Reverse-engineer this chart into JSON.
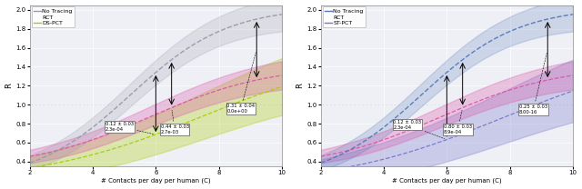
{
  "x_min": 2,
  "x_max": 10,
  "y_min": 0.35,
  "y_max": 2.05,
  "yticks": [
    0.4,
    0.6,
    0.8,
    1.0,
    1.2,
    1.4,
    1.6,
    1.8,
    2.0
  ],
  "xticks": [
    2,
    4,
    6,
    8,
    10
  ],
  "xlabel": "# Contacts per day per human (C)",
  "ylabel": "R",
  "bg_color": "#eef0f5",
  "left": {
    "legend": [
      "No Tracing",
      "RCT",
      "DS-PCT"
    ],
    "no_tracing_color": "#9999aa",
    "rct_color": "#dd55aa",
    "ds_pct_color": "#aacc00",
    "ann1": {
      "xbox": 4.4,
      "ybox": 0.82,
      "text": "0.12 ± 0.03\n2.3e-04"
    },
    "ann2": {
      "xbox": 6.15,
      "ybox": 0.79,
      "text": "0.44 ± 0.03\n2.7e-03"
    },
    "ann3": {
      "xbox": 8.25,
      "ybox": 0.96,
      "text": "0.31 ± 0.04\n0.0e+00"
    }
  },
  "right": {
    "legend": [
      "No Tracing",
      "RCT",
      "ST-PCT"
    ],
    "no_tracing_color": "#5577bb",
    "rct_color": "#dd55aa",
    "st_pct_color": "#7777cc",
    "ann1": {
      "xbox": 4.3,
      "ybox": 0.84,
      "text": "0.12 ± 0.03\n2.3e-04"
    },
    "ann2": {
      "xbox": 5.9,
      "ybox": 0.79,
      "text": "0.80 ± 0.03\n8.9e-04"
    },
    "ann3": {
      "xbox": 8.3,
      "ybox": 0.95,
      "text": "0.25 ± 0.03\n8.00-16"
    }
  }
}
